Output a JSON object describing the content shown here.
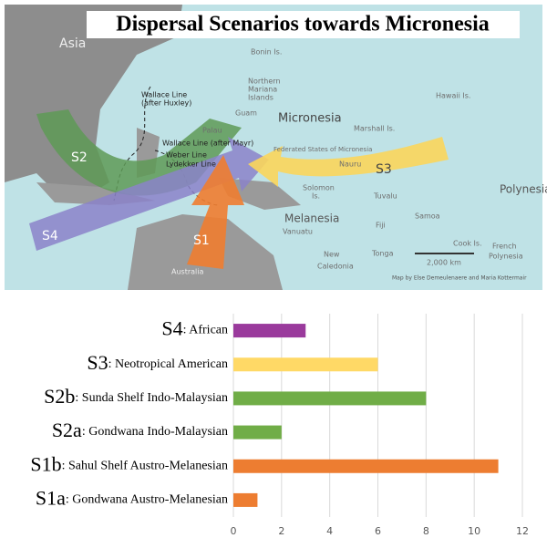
{
  "map": {
    "title": "Dispersal Scenarios towards Micronesia",
    "labels": [
      {
        "text": "Asia"
      },
      {
        "text": "Bonin Is."
      },
      {
        "text": "Northern"
      },
      {
        "text": "Mariana"
      },
      {
        "text": "Islands"
      },
      {
        "text": "Hawaii Is."
      },
      {
        "text": "Wallace Line"
      },
      {
        "text": "(after Huxley)"
      },
      {
        "text": "Guam"
      },
      {
        "text": "Palau"
      },
      {
        "text": "Micronesia"
      },
      {
        "text": "Marshall Is."
      },
      {
        "text": "Wallace Line (after Mayr)"
      },
      {
        "text": "Weber Line"
      },
      {
        "text": "Lydekker Line"
      },
      {
        "text": "Federated States of Micronesia"
      },
      {
        "text": "Nauru"
      },
      {
        "text": "Solomon"
      },
      {
        "text": "Is."
      },
      {
        "text": "Tuvalu"
      },
      {
        "text": "Polynesia"
      },
      {
        "text": "Melanesia"
      },
      {
        "text": "Vanuatu"
      },
      {
        "text": "Fiji"
      },
      {
        "text": "Samoa"
      },
      {
        "text": "Cook Is."
      },
      {
        "text": "New"
      },
      {
        "text": "Caledonia"
      },
      {
        "text": "Tonga"
      },
      {
        "text": "French"
      },
      {
        "text": "Polynesia"
      },
      {
        "text": "2,000 km"
      },
      {
        "text": "Map by Else Demeulenaere and Maria Kottermair"
      },
      {
        "text": "Australia"
      },
      {
        "text": "S1"
      },
      {
        "text": "S2"
      },
      {
        "text": "S3"
      },
      {
        "text": "S4"
      }
    ]
  },
  "chart_data": {
    "type": "bar",
    "orientation": "horizontal",
    "categories": [
      "S4",
      "S3",
      "S2b",
      "S2a",
      "S1b",
      "S1a"
    ],
    "category_descriptions": [
      ": African",
      ": Neotropical American",
      ": Sunda Shelf Indo-Malaysian",
      ": Gondwana Indo-Malaysian",
      ": Sahul Shelf Austro-Melanesian",
      ": Gondwana Austro-Melanesian"
    ],
    "values": [
      3,
      6,
      8,
      2,
      11,
      1
    ],
    "colors": [
      "#9a3a9c",
      "#ffd966",
      "#70ad47",
      "#70ad47",
      "#ed7d31",
      "#ed7d31"
    ],
    "xlim": [
      0,
      12
    ],
    "xticks": [
      0,
      2,
      4,
      6,
      8,
      10,
      12
    ],
    "grid": true
  }
}
